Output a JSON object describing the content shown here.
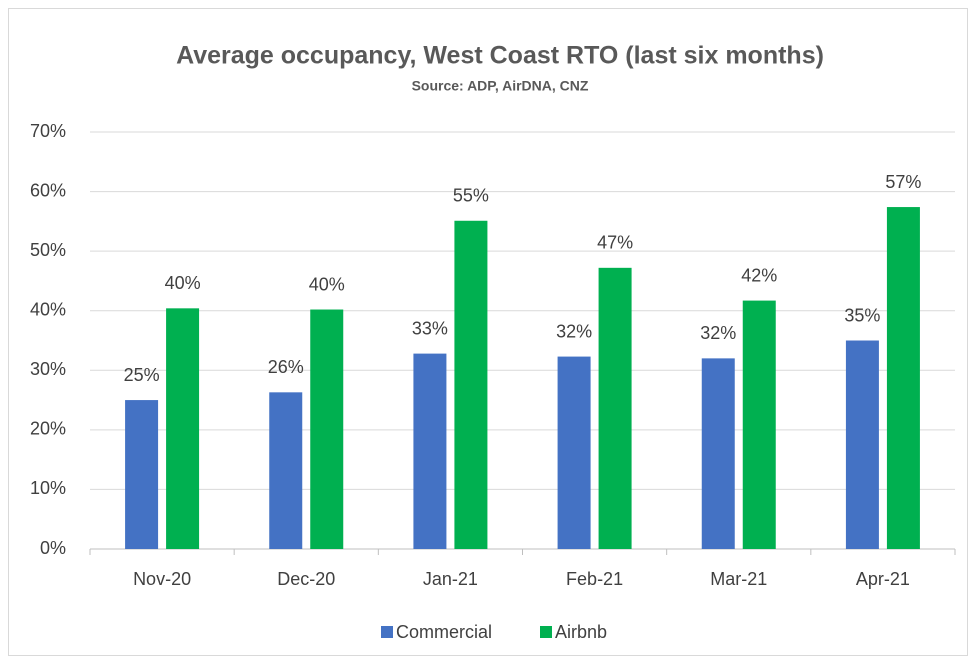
{
  "chart_data": {
    "type": "bar",
    "title": "Average occupancy, West Coast RTO (last six months)",
    "subtitle": "Source: ADP, AirDNA, CNZ",
    "categories": [
      "Nov-20",
      "Dec-20",
      "Jan-21",
      "Feb-21",
      "Mar-21",
      "Apr-21"
    ],
    "series": [
      {
        "name": "Commercial",
        "color": "#4472c4",
        "values": [
          25.0,
          26.3,
          32.8,
          32.3,
          32.0,
          35.0
        ],
        "value_labels": [
          "25%",
          "26%",
          "33%",
          "32%",
          "32%",
          "35%"
        ]
      },
      {
        "name": "Airbnb",
        "color": "#00b050",
        "values": [
          40.4,
          40.2,
          55.1,
          47.2,
          41.7,
          57.4
        ],
        "value_labels": [
          "40%",
          "40%",
          "55%",
          "47%",
          "42%",
          "57%"
        ]
      }
    ],
    "ylim": [
      0,
      70
    ],
    "yticks": [
      {
        "value": 0,
        "label": "0%"
      },
      {
        "value": 10,
        "label": "10%"
      },
      {
        "value": 20,
        "label": "20%"
      },
      {
        "value": 30,
        "label": "30%"
      },
      {
        "value": 40,
        "label": "40%"
      },
      {
        "value": 50,
        "label": "50%"
      },
      {
        "value": 60,
        "label": "60%"
      },
      {
        "value": 70,
        "label": "70%"
      }
    ],
    "grid": true,
    "legend": "bottom"
  }
}
